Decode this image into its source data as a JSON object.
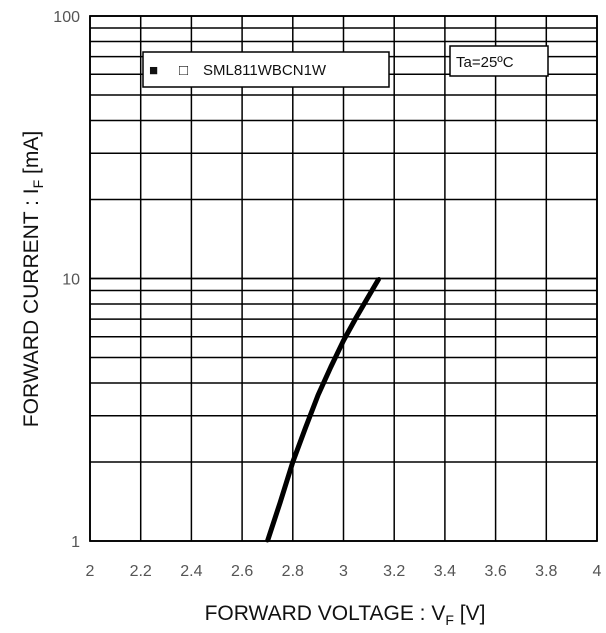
{
  "chart_data": {
    "type": "line",
    "x_scale": "linear",
    "y_scale": "log",
    "xlim": [
      2,
      4
    ],
    "ylim": [
      1,
      100
    ],
    "x_ticks": [
      "2",
      "2.2",
      "2.4",
      "2.6",
      "2.8",
      "3",
      "3.2",
      "3.4",
      "3.6",
      "3.8",
      "4"
    ],
    "y_ticks": [
      "1",
      "10",
      "100"
    ],
    "xlabel": {
      "main": "FORWARD VOLTAGE : V",
      "sub": "F",
      "unit": " [V]"
    },
    "ylabel": {
      "main": "FORWARD CURRENT : I",
      "sub": "F",
      "unit": " [mA]"
    },
    "grid": true,
    "legend": {
      "position": "top-left",
      "symbols": [
        "■",
        "□"
      ],
      "text": "SML811WBCN1W"
    },
    "annotation": "Ta=25ºC",
    "series": [
      {
        "name": "SML811WBCN1W",
        "color": "#000000",
        "x": [
          2.7,
          2.75,
          2.8,
          2.85,
          2.9,
          2.95,
          3.0,
          3.05,
          3.1,
          3.14
        ],
        "y": [
          1.0,
          1.4,
          2.0,
          2.7,
          3.6,
          4.6,
          5.8,
          7.1,
          8.6,
          10.0
        ]
      }
    ]
  }
}
